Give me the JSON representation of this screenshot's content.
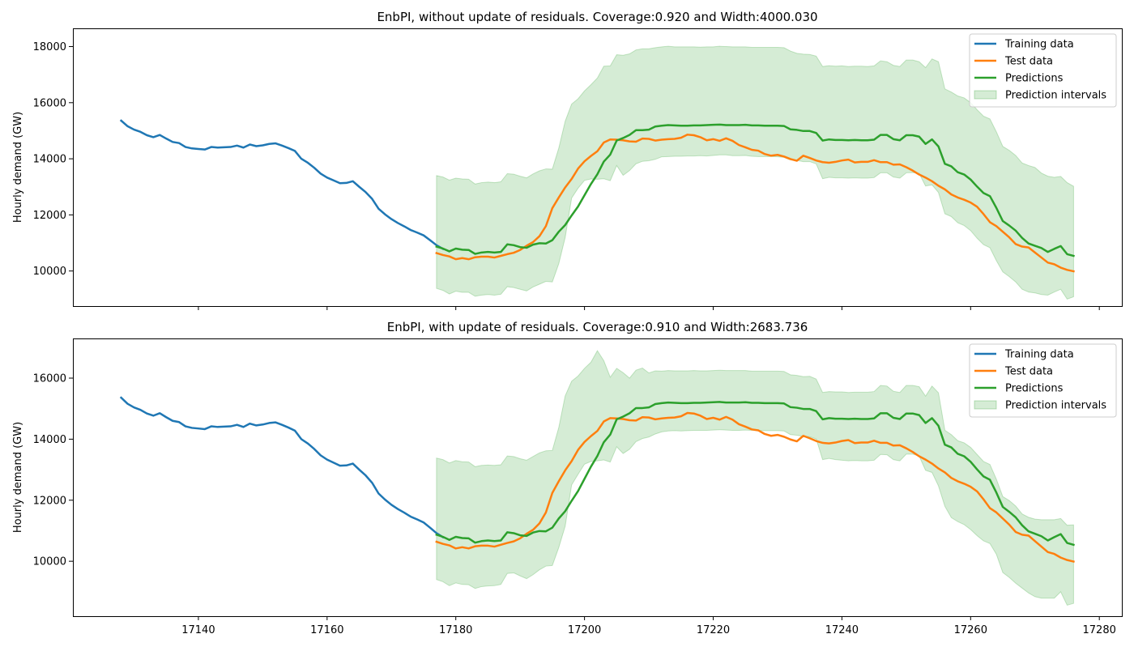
{
  "chart_data": [
    {
      "type": "line",
      "title": "EnbPI, without update of residuals. Coverage:0.920 and Width:4000.030",
      "xlabel": "",
      "ylabel": "Hourly demand (GW)",
      "xlim": [
        17120.5,
        17283.5
      ],
      "ylim": [
        8750,
        18650
      ],
      "xticks": [
        17140,
        17160,
        17180,
        17200,
        17220,
        17240,
        17260,
        17280
      ],
      "xtick_labels_visible": false,
      "yticks": [
        10000,
        12000,
        14000,
        16000,
        18000
      ],
      "ytick_labels": [
        "10000",
        "12000",
        "14000",
        "16000",
        "18000"
      ],
      "legend_position": "top-right",
      "legend": [
        "Training data",
        "Test data",
        "Predictions",
        "Prediction intervals"
      ],
      "colors": {
        "training": "#1f77b4",
        "test": "#ff7f0e",
        "predictions": "#2ca02c",
        "interval": "#2ca02c"
      },
      "training": {
        "x_start": 17128,
        "values": [
          15360,
          15160,
          15040,
          14960,
          14840,
          14770,
          14850,
          14720,
          14600,
          14560,
          14420,
          14370,
          14350,
          14330,
          14420,
          14400,
          14410,
          14420,
          14470,
          14400,
          14510,
          14450,
          14480,
          14530,
          14550,
          14470,
          14380,
          14280,
          14000,
          13860,
          13680,
          13470,
          13330,
          13230,
          13130,
          13140,
          13200,
          13000,
          12810,
          12570,
          12220,
          12020,
          11850,
          11710,
          11590,
          11460,
          11370,
          11270,
          11100,
          10920,
          10790
        ]
      },
      "test": {
        "x_start": 17177,
        "values": [
          10640,
          10570,
          10520,
          10420,
          10460,
          10420,
          10490,
          10510,
          10510,
          10480,
          10540,
          10600,
          10650,
          10750,
          10900,
          11030,
          11240,
          11600,
          12240,
          12620,
          12980,
          13280,
          13650,
          13910,
          14100,
          14270,
          14580,
          14690,
          14680,
          14660,
          14620,
          14610,
          14720,
          14710,
          14650,
          14680,
          14700,
          14710,
          14750,
          14860,
          14840,
          14770,
          14660,
          14700,
          14640,
          14730,
          14640,
          14490,
          14410,
          14320,
          14290,
          14170,
          14110,
          14140,
          14080,
          13990,
          13930,
          14110,
          14030,
          13940,
          13880,
          13860,
          13890,
          13940,
          13970,
          13870,
          13890,
          13890,
          13950,
          13880,
          13880,
          13790,
          13800,
          13700,
          13580,
          13440,
          13330,
          13200,
          13040,
          12910,
          12730,
          12620,
          12540,
          12440,
          12290,
          12030,
          11740,
          11600,
          11400,
          11200,
          10960,
          10870,
          10840,
          10660,
          10480,
          10300,
          10240,
          10120,
          10040,
          9990
        ]
      },
      "predictions": {
        "x_start": 17177,
        "values": [
          10870,
          10800,
          10700,
          10800,
          10760,
          10750,
          10610,
          10660,
          10680,
          10660,
          10680,
          10950,
          10920,
          10850,
          10830,
          10940,
          10990,
          10980,
          11100,
          11400,
          11640,
          11980,
          12300,
          12700,
          13100,
          13450,
          13900,
          14150,
          14650,
          14740,
          14850,
          15020,
          15020,
          15040,
          15150,
          15180,
          15200,
          15190,
          15180,
          15180,
          15190,
          15190,
          15200,
          15210,
          15220,
          15200,
          15200,
          15200,
          15210,
          15190,
          15190,
          15180,
          15180,
          15180,
          15170,
          15050,
          15030,
          14990,
          14990,
          14920,
          14650,
          14690,
          14670,
          14670,
          14660,
          14670,
          14660,
          14660,
          14680,
          14850,
          14850,
          14700,
          14660,
          14840,
          14840,
          14790,
          14530,
          14690,
          14440,
          13820,
          13730,
          13520,
          13440,
          13260,
          13010,
          12780,
          12670,
          12250,
          11780,
          11620,
          11440,
          11180,
          10980,
          10900,
          10820,
          10680,
          10790,
          10890,
          10600,
          10540
        ]
      },
      "interval_lower": [
        9380,
        9310,
        9180,
        9280,
        9240,
        9240,
        9100,
        9140,
        9160,
        9140,
        9170,
        9440,
        9410,
        9350,
        9290,
        9430,
        9530,
        9630,
        9610,
        10260,
        11200,
        12600,
        12950,
        13230,
        13280,
        13270,
        13290,
        13220,
        13760,
        13410,
        13580,
        13820,
        13910,
        13930,
        13980,
        14070,
        14080,
        14090,
        14090,
        14100,
        14100,
        14110,
        14100,
        14120,
        14140,
        14140,
        14110,
        14110,
        14120,
        14090,
        14080,
        14080,
        14080,
        14070,
        14050,
        13960,
        13940,
        13900,
        13900,
        13820,
        13290,
        13340,
        13320,
        13320,
        13310,
        13320,
        13310,
        13310,
        13330,
        13500,
        13500,
        13350,
        13310,
        13500,
        13510,
        13480,
        13030,
        13070,
        12800,
        12040,
        11940,
        11720,
        11620,
        11440,
        11170,
        10940,
        10830,
        10370,
        9970,
        9800,
        9610,
        9350,
        9250,
        9220,
        9160,
        9140,
        9250,
        9350,
        9000,
        9080
      ],
      "interval_upper": [
        13400,
        13350,
        13240,
        13310,
        13280,
        13270,
        13100,
        13150,
        13170,
        13150,
        13180,
        13470,
        13450,
        13380,
        13320,
        13460,
        13570,
        13640,
        13630,
        14380,
        15340,
        15950,
        16140,
        16420,
        16640,
        16880,
        17300,
        17310,
        17710,
        17690,
        17740,
        17880,
        17920,
        17920,
        17960,
        17990,
        18010,
        17990,
        17990,
        17990,
        17990,
        17980,
        17990,
        17990,
        18010,
        18000,
        17990,
        17990,
        17990,
        17970,
        17970,
        17970,
        17970,
        17970,
        17960,
        17840,
        17760,
        17730,
        17720,
        17660,
        17290,
        17320,
        17300,
        17310,
        17290,
        17300,
        17300,
        17290,
        17310,
        17490,
        17460,
        17330,
        17290,
        17520,
        17520,
        17460,
        17250,
        17560,
        17460,
        16490,
        16380,
        16240,
        16170,
        16000,
        15750,
        15520,
        15420,
        14960,
        14440,
        14300,
        14120,
        13850,
        13760,
        13690,
        13490,
        13380,
        13340,
        13370,
        13150,
        13020
      ]
    },
    {
      "type": "line",
      "title": "EnbPI, with update of residuals. Coverage:0.910 and Width:2683.736",
      "xlabel": "",
      "ylabel": "Hourly demand (GW)",
      "xlim": [
        17120.5,
        17283.5
      ],
      "ylim": [
        8200,
        17300
      ],
      "xticks": [
        17140,
        17160,
        17180,
        17200,
        17220,
        17240,
        17260,
        17280
      ],
      "xtick_labels": [
        "17140",
        "17160",
        "17180",
        "17200",
        "17220",
        "17240",
        "17260",
        "17280"
      ],
      "yticks": [
        10000,
        12000,
        14000,
        16000
      ],
      "ytick_labels": [
        "10000",
        "12000",
        "14000",
        "16000"
      ],
      "legend_position": "top-right",
      "legend": [
        "Training data",
        "Test data",
        "Predictions",
        "Prediction intervals"
      ],
      "colors": {
        "training": "#1f77b4",
        "test": "#ff7f0e",
        "predictions": "#2ca02c",
        "interval": "#2ca02c"
      },
      "training": {
        "x_start": 17128,
        "values": [
          15360,
          15160,
          15040,
          14960,
          14840,
          14770,
          14850,
          14720,
          14600,
          14560,
          14420,
          14370,
          14350,
          14330,
          14420,
          14400,
          14410,
          14420,
          14470,
          14400,
          14510,
          14450,
          14480,
          14530,
          14550,
          14470,
          14380,
          14280,
          14000,
          13860,
          13680,
          13470,
          13330,
          13230,
          13130,
          13140,
          13200,
          13000,
          12810,
          12570,
          12220,
          12020,
          11850,
          11710,
          11590,
          11460,
          11370,
          11270,
          11100,
          10920,
          10790
        ]
      },
      "test": {
        "x_start": 17177,
        "values": [
          10640,
          10570,
          10520,
          10420,
          10460,
          10420,
          10490,
          10510,
          10510,
          10480,
          10540,
          10600,
          10650,
          10750,
          10900,
          11030,
          11240,
          11600,
          12240,
          12620,
          12980,
          13280,
          13650,
          13910,
          14100,
          14270,
          14580,
          14690,
          14680,
          14660,
          14620,
          14610,
          14720,
          14710,
          14650,
          14680,
          14700,
          14710,
          14750,
          14860,
          14840,
          14770,
          14660,
          14700,
          14640,
          14730,
          14640,
          14490,
          14410,
          14320,
          14290,
          14170,
          14110,
          14140,
          14080,
          13990,
          13930,
          14110,
          14030,
          13940,
          13880,
          13860,
          13890,
          13940,
          13970,
          13870,
          13890,
          13890,
          13950,
          13880,
          13880,
          13790,
          13800,
          13700,
          13580,
          13440,
          13330,
          13200,
          13040,
          12910,
          12730,
          12620,
          12540,
          12440,
          12290,
          12030,
          11740,
          11600,
          11400,
          11200,
          10960,
          10870,
          10840,
          10660,
          10480,
          10300,
          10240,
          10120,
          10040,
          9990
        ]
      },
      "predictions": {
        "x_start": 17177,
        "values": [
          10870,
          10800,
          10700,
          10800,
          10760,
          10750,
          10610,
          10660,
          10680,
          10660,
          10680,
          10950,
          10920,
          10850,
          10830,
          10940,
          10990,
          10980,
          11100,
          11400,
          11640,
          11980,
          12300,
          12700,
          13100,
          13450,
          13900,
          14150,
          14650,
          14740,
          14850,
          15020,
          15020,
          15040,
          15150,
          15180,
          15200,
          15190,
          15180,
          15180,
          15190,
          15190,
          15200,
          15210,
          15220,
          15200,
          15200,
          15200,
          15210,
          15190,
          15190,
          15180,
          15180,
          15180,
          15170,
          15050,
          15030,
          14990,
          14990,
          14920,
          14650,
          14690,
          14670,
          14670,
          14660,
          14670,
          14660,
          14660,
          14680,
          14850,
          14850,
          14700,
          14660,
          14840,
          14840,
          14790,
          14530,
          14690,
          14440,
          13820,
          13730,
          13520,
          13440,
          13260,
          13010,
          12780,
          12670,
          12250,
          11780,
          11620,
          11440,
          11180,
          10980,
          10900,
          10820,
          10680,
          10790,
          10890,
          10600,
          10540
        ]
      },
      "interval_lower": [
        9400,
        9330,
        9200,
        9290,
        9240,
        9230,
        9110,
        9170,
        9190,
        9200,
        9240,
        9600,
        9620,
        9520,
        9430,
        9560,
        9720,
        9840,
        9860,
        10450,
        11150,
        12500,
        12850,
        13180,
        13270,
        13290,
        13320,
        13250,
        13750,
        13530,
        13670,
        13920,
        14020,
        14070,
        14170,
        14240,
        14270,
        14280,
        14270,
        14280,
        14290,
        14290,
        14290,
        14300,
        14310,
        14300,
        14290,
        14290,
        14300,
        14290,
        14280,
        14280,
        14280,
        14280,
        14270,
        14150,
        14130,
        14090,
        14080,
        14010,
        13330,
        13370,
        13330,
        13310,
        13290,
        13300,
        13290,
        13290,
        13310,
        13500,
        13490,
        13330,
        13290,
        13510,
        13510,
        13450,
        12980,
        12910,
        12470,
        11800,
        11430,
        11300,
        11200,
        11040,
        10840,
        10670,
        10580,
        10230,
        9630,
        9470,
        9280,
        9120,
        8960,
        8840,
        8790,
        8790,
        8790,
        9000,
        8560,
        8620
      ],
      "interval_upper": [
        13380,
        13330,
        13220,
        13300,
        13260,
        13250,
        13100,
        13140,
        13150,
        13140,
        13160,
        13450,
        13430,
        13360,
        13310,
        13430,
        13550,
        13620,
        13630,
        14380,
        15420,
        15900,
        16070,
        16320,
        16520,
        16900,
        16570,
        16030,
        16320,
        16180,
        16000,
        16260,
        16330,
        16170,
        16240,
        16230,
        16250,
        16240,
        16240,
        16240,
        16250,
        16240,
        16240,
        16250,
        16260,
        16250,
        16250,
        16250,
        16250,
        16230,
        16230,
        16230,
        16230,
        16230,
        16220,
        16110,
        16090,
        16050,
        16060,
        15970,
        15530,
        15560,
        15550,
        15550,
        15530,
        15540,
        15540,
        15540,
        15560,
        15760,
        15740,
        15570,
        15530,
        15760,
        15760,
        15720,
        15410,
        15740,
        15520,
        14290,
        14150,
        13950,
        13880,
        13730,
        13500,
        13270,
        13170,
        12690,
        12120,
        11990,
        11810,
        11550,
        11440,
        11380,
        11360,
        11360,
        11360,
        11400,
        11180,
        11190
      ]
    }
  ]
}
